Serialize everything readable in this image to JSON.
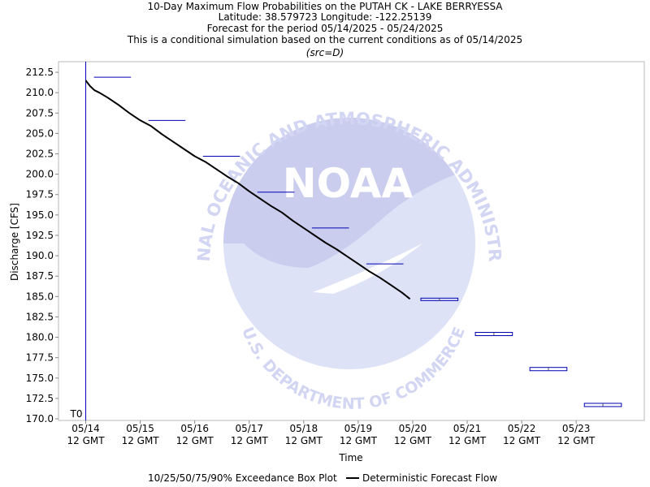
{
  "chart_data": {
    "type": "line",
    "title_lines": [
      "10-Day Maximum Flow Probabilities on the PUTAH CK - LAKE BERRYESSA",
      "Latitude: 38.579723 Longitude: -122.25139",
      "Forecast for the period 05/14/2025 - 05/24/2025",
      "This is a conditional simulation based on the current conditions as of 05/14/2025"
    ],
    "subtitle": "(src=D)",
    "xlabel": "Time",
    "ylabel": "Discharge [CFS]",
    "ylim": [
      169.8,
      213.8
    ],
    "yticks": [
      170.0,
      172.5,
      175.0,
      177.5,
      180.0,
      182.5,
      185.0,
      187.5,
      190.0,
      192.5,
      195.0,
      197.5,
      200.0,
      202.5,
      205.0,
      207.5,
      210.0,
      212.5
    ],
    "xlim": [
      -0.5,
      10.25
    ],
    "xticks": [
      {
        "x": 0,
        "date": "05/14",
        "time": "12 GMT"
      },
      {
        "x": 1,
        "date": "05/15",
        "time": "12 GMT"
      },
      {
        "x": 2,
        "date": "05/16",
        "time": "12 GMT"
      },
      {
        "x": 3,
        "date": "05/17",
        "time": "12 GMT"
      },
      {
        "x": 4,
        "date": "05/18",
        "time": "12 GMT"
      },
      {
        "x": 5,
        "date": "05/19",
        "time": "12 GMT"
      },
      {
        "x": 6,
        "date": "05/20",
        "time": "12 GMT"
      },
      {
        "x": 7,
        "date": "05/21",
        "time": "12 GMT"
      },
      {
        "x": 8,
        "date": "05/22",
        "time": "12 GMT"
      },
      {
        "x": 9,
        "date": "05/23",
        "time": "12 GMT"
      }
    ],
    "t0_label": "T0",
    "t0_x": 0,
    "boxplots": [
      {
        "x_start": 0.15,
        "x_end": 0.83,
        "value": 211.9
      },
      {
        "x_start": 1.15,
        "x_end": 1.83,
        "value": 206.6
      },
      {
        "x_start": 2.15,
        "x_end": 2.83,
        "value": 202.2
      },
      {
        "x_start": 3.15,
        "x_end": 3.83,
        "value": 197.8
      },
      {
        "x_start": 4.15,
        "x_end": 4.83,
        "value": 193.4
      },
      {
        "x_start": 5.15,
        "x_end": 5.83,
        "value": 189.0
      },
      {
        "x_start": 6.15,
        "x_end": 6.83,
        "value": 184.6,
        "low": 184.5,
        "high": 184.8
      },
      {
        "x_start": 7.15,
        "x_end": 7.83,
        "value": 180.4,
        "low": 180.2,
        "high": 180.6
      },
      {
        "x_start": 8.15,
        "x_end": 8.83,
        "value": 176.1,
        "low": 175.9,
        "high": 176.3
      },
      {
        "x_start": 9.15,
        "x_end": 9.83,
        "value": 171.7,
        "low": 171.5,
        "high": 171.9
      }
    ],
    "series": [
      {
        "name": "Deterministic Forecast Flow",
        "color": "#000000",
        "x": [
          0,
          0.08,
          0.16,
          0.25,
          0.4,
          0.6,
          0.8,
          1.0,
          1.2,
          1.4,
          1.6,
          1.8,
          2.0,
          2.2,
          2.4,
          2.6,
          2.8,
          3.0,
          3.2,
          3.4,
          3.6,
          3.8,
          4.0,
          4.2,
          4.4,
          4.6,
          4.8,
          5.0,
          5.2,
          5.4,
          5.6,
          5.8,
          5.95
        ],
        "y": [
          211.5,
          210.8,
          210.3,
          210.0,
          209.4,
          208.5,
          207.5,
          206.6,
          205.9,
          204.9,
          204.0,
          203.1,
          202.2,
          201.5,
          200.6,
          199.7,
          198.9,
          197.9,
          197.0,
          196.1,
          195.3,
          194.3,
          193.4,
          192.5,
          191.6,
          190.8,
          189.9,
          189.0,
          188.1,
          187.3,
          186.4,
          185.5,
          184.7
        ]
      }
    ],
    "legend": {
      "placement": "bottom",
      "boxplot_label": "10/25/50/75/90% Exceedance Box Plot",
      "line_label": "Deterministic Forecast Flow"
    },
    "watermark": {
      "text_top": "NATIONAL OCEANIC AND ATMOSPHERIC ADMINISTRATION",
      "text_bottom": "U.S. DEPARTMENT OF COMMERCE",
      "logo": "NOAA"
    },
    "colors": {
      "boxplot": "#0000b0",
      "t0_line": "#0000c0",
      "watermark": "#d7dcf5",
      "watermark_dark": "#c4c6ea"
    }
  }
}
